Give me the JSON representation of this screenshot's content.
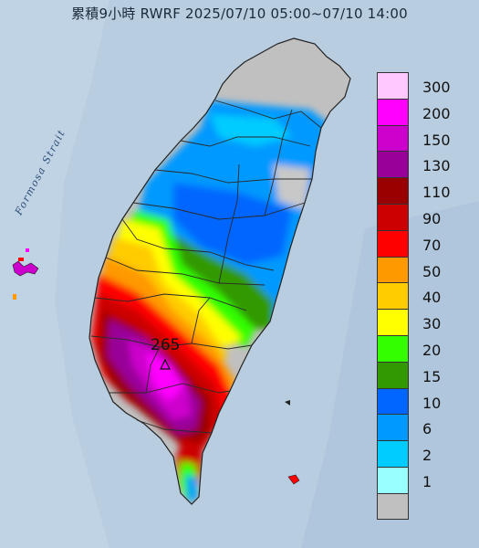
{
  "title": "累積9小時 RWRF 2025/07/10 05:00~07/10 14:00",
  "strait_label": "Formosa Strait",
  "peak_value": "265",
  "colors": {
    "sea": "#b9cde0",
    "land_gray": "#c0c0c0",
    "county_border": "#2a2a2a"
  },
  "legend": [
    {
      "label": "300",
      "color": "#ffc8ff"
    },
    {
      "label": "200",
      "color": "#ff00ff"
    },
    {
      "label": "150",
      "color": "#cc00cc"
    },
    {
      "label": "130",
      "color": "#990099"
    },
    {
      "label": "110",
      "color": "#990000"
    },
    {
      "label": "90",
      "color": "#cc0000"
    },
    {
      "label": "70",
      "color": "#ff0000"
    },
    {
      "label": "50",
      "color": "#ff9900"
    },
    {
      "label": "40",
      "color": "#ffcc00"
    },
    {
      "label": "30",
      "color": "#ffff00"
    },
    {
      "label": "20",
      "color": "#33ff00"
    },
    {
      "label": "15",
      "color": "#339900"
    },
    {
      "label": "10",
      "color": "#0066ff"
    },
    {
      "label": "6",
      "color": "#0099ff"
    },
    {
      "label": "2",
      "color": "#00ccff"
    },
    {
      "label": "1",
      "color": "#99ffff"
    },
    {
      "label": "",
      "color": "#c0c0c0"
    }
  ]
}
